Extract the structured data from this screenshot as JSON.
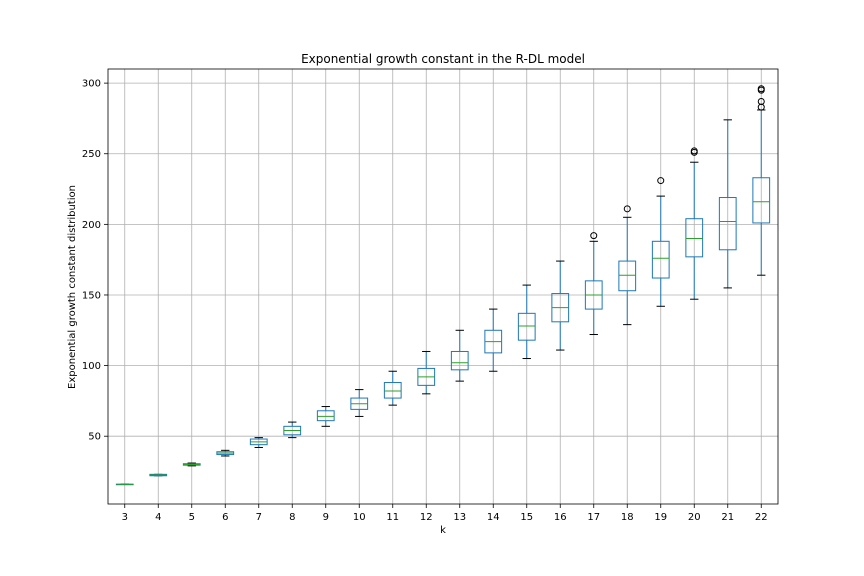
{
  "chart_data": {
    "type": "box",
    "title": "Exponential growth constant in the R-DL model",
    "xlabel": "k",
    "ylabel": "Exponential growth constant distribution",
    "ylim": [
      2,
      310
    ],
    "yticks": [
      50,
      100,
      150,
      200,
      250,
      300
    ],
    "grid": true,
    "legend": "none",
    "colors": {
      "box": "#1f77b4",
      "median": "#2ca02c",
      "whisker": "#000000",
      "flier": "#000000",
      "grid": "#b0b0b0"
    },
    "categories": [
      "3",
      "4",
      "5",
      "6",
      "7",
      "8",
      "9",
      "10",
      "11",
      "12",
      "13",
      "14",
      "15",
      "16",
      "17",
      "18",
      "19",
      "20",
      "21",
      "22"
    ],
    "boxes": [
      {
        "k": "3",
        "min": 16,
        "q1": 16,
        "median": 16,
        "q3": 16,
        "max": 16,
        "fliers": []
      },
      {
        "k": "4",
        "min": 22,
        "q1": 22,
        "median": 22.5,
        "q3": 23,
        "max": 23,
        "fliers": []
      },
      {
        "k": "5",
        "min": 29,
        "q1": 29.5,
        "median": 30,
        "q3": 30.5,
        "max": 31,
        "fliers": []
      },
      {
        "k": "6",
        "min": 36,
        "q1": 37,
        "median": 38,
        "q3": 39,
        "max": 40,
        "fliers": []
      },
      {
        "k": "7",
        "min": 42,
        "q1": 44,
        "median": 46,
        "q3": 48,
        "max": 49,
        "fliers": []
      },
      {
        "k": "8",
        "min": 49,
        "q1": 51,
        "median": 54,
        "q3": 57,
        "max": 60,
        "fliers": []
      },
      {
        "k": "9",
        "min": 57,
        "q1": 61,
        "median": 64,
        "q3": 68,
        "max": 71,
        "fliers": []
      },
      {
        "k": "10",
        "min": 64,
        "q1": 69,
        "median": 73,
        "q3": 77,
        "max": 83,
        "fliers": []
      },
      {
        "k": "11",
        "min": 72,
        "q1": 77,
        "median": 82,
        "q3": 88,
        "max": 96,
        "fliers": []
      },
      {
        "k": "12",
        "min": 80,
        "q1": 86,
        "median": 92,
        "q3": 98,
        "max": 110,
        "fliers": []
      },
      {
        "k": "13",
        "min": 89,
        "q1": 97,
        "median": 102,
        "q3": 110,
        "max": 125,
        "fliers": []
      },
      {
        "k": "14",
        "min": 96,
        "q1": 109,
        "median": 117,
        "q3": 125,
        "max": 140,
        "fliers": []
      },
      {
        "k": "15",
        "min": 105,
        "q1": 118,
        "median": 128,
        "q3": 137,
        "max": 157,
        "fliers": []
      },
      {
        "k": "16",
        "min": 111,
        "q1": 131,
        "median": 141,
        "q3": 151,
        "max": 174,
        "fliers": []
      },
      {
        "k": "17",
        "min": 122,
        "q1": 140,
        "median": 150,
        "q3": 160,
        "max": 188,
        "fliers": [
          192
        ]
      },
      {
        "k": "18",
        "min": 129,
        "q1": 153,
        "median": 164,
        "q3": 174,
        "max": 205,
        "fliers": [
          211
        ]
      },
      {
        "k": "19",
        "min": 142,
        "q1": 162,
        "median": 176,
        "q3": 188,
        "max": 220,
        "fliers": [
          231
        ]
      },
      {
        "k": "20",
        "min": 147,
        "q1": 177,
        "median": 190,
        "q3": 204,
        "max": 244,
        "fliers": [
          251,
          252
        ]
      },
      {
        "k": "21",
        "min": 155,
        "q1": 182,
        "median": 202,
        "q3": 219,
        "max": 274,
        "fliers": []
      },
      {
        "k": "22",
        "min": 164,
        "q1": 201,
        "median": 216,
        "q3": 233,
        "max": 281,
        "fliers": [
          283,
          287,
          295,
          296
        ]
      }
    ]
  }
}
